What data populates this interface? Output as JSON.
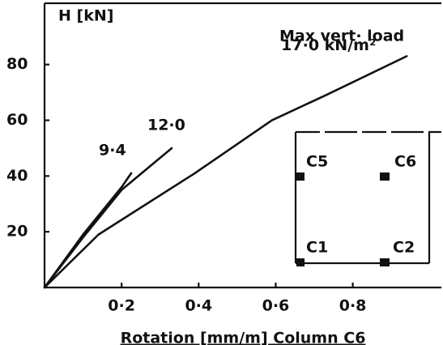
{
  "chart_data": {
    "type": "line",
    "ylabel": "H [kN]",
    "xlabel": "Rotation [mm/m] Column C6",
    "annotation": "Max vert· load",
    "series": [
      {
        "name": "9·4",
        "color": "#111111",
        "x": [
          0,
          0.1,
          0.2,
          0.225
        ],
        "values": [
          0,
          19,
          36,
          41
        ]
      },
      {
        "name": "12·0",
        "color": "#111111",
        "x": [
          0,
          0.1,
          0.2,
          0.33
        ],
        "values": [
          0,
          18,
          35,
          50
        ]
      },
      {
        "name": "17·0 kN/m²",
        "color": "#111111",
        "x": [
          0,
          0.14,
          0.39,
          0.59,
          0.73,
          0.94
        ],
        "values": [
          0,
          19,
          41,
          60,
          69,
          83
        ]
      }
    ],
    "xlim": [
      0,
      1.03
    ],
    "ylim": [
      0,
      102
    ],
    "xticks": [
      {
        "value": 0.2,
        "label": "0·2"
      },
      {
        "value": 0.4,
        "label": "0·4"
      },
      {
        "value": 0.6,
        "label": "0·6"
      },
      {
        "value": 0.8,
        "label": "0·8"
      }
    ],
    "yticks": [
      20,
      40,
      60,
      80
    ],
    "inset": {
      "labels": [
        "C5",
        "C6",
        "C1",
        "C2"
      ]
    }
  }
}
